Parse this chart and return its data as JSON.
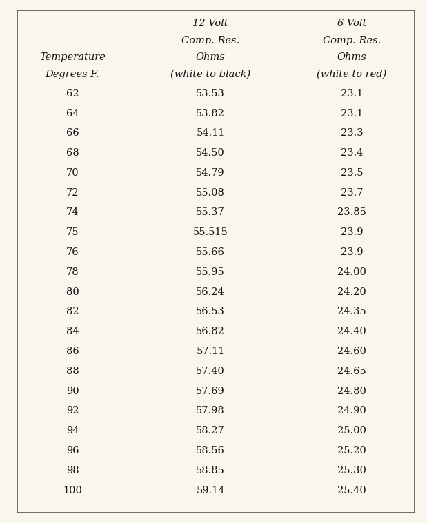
{
  "header_col1": [
    "12 Volt",
    "Comp. Res.",
    "Ohms",
    "(white to black)"
  ],
  "header_col2": [
    "6 Volt",
    "Comp. Res.",
    "Ohms",
    "(white to red)"
  ],
  "header_row": [
    "Temperature",
    "Degrees F."
  ],
  "temperatures": [
    62,
    64,
    66,
    68,
    70,
    72,
    74,
    75,
    76,
    78,
    80,
    82,
    84,
    86,
    88,
    90,
    92,
    94,
    96,
    98,
    100
  ],
  "volt12": [
    "53.53",
    "53.82",
    "54.11",
    "54.50",
    "54.79",
    "55.08",
    "55.37",
    "55.515",
    "55.66",
    "55.95",
    "56.24",
    "56.53",
    "56.82",
    "57.11",
    "57.40",
    "57.69",
    "57.98",
    "58.27",
    "58.56",
    "58.85",
    "59.14"
  ],
  "volt6": [
    "23.1",
    "23.1",
    "23.3",
    "23.4",
    "23.5",
    "23.7",
    "23.85",
    "23.9",
    "23.9",
    "24.00",
    "24.20",
    "24.35",
    "24.40",
    "24.60",
    "24.65",
    "24.80",
    "24.90",
    "25.00",
    "25.20",
    "25.30",
    "25.40"
  ],
  "bg_color": "#faf6ee",
  "border_color": "#555555",
  "text_color": "#111111",
  "font_size": 10.5,
  "header_font_size": 10.5,
  "fig_width": 6.19,
  "fig_height": 7.59,
  "dpi": 100
}
